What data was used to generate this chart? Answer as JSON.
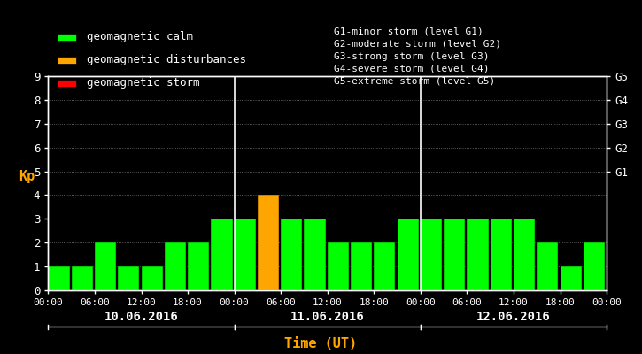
{
  "dates": [
    "10.06.2016",
    "11.06.2016",
    "12.06.2016"
  ],
  "kp_values": [
    1,
    1,
    2,
    1,
    1,
    2,
    2,
    3,
    3,
    4,
    3,
    3,
    2,
    2,
    2,
    3,
    3,
    3,
    3,
    3,
    3,
    2,
    1,
    2
  ],
  "bar_colors": [
    "#00ff00",
    "#00ff00",
    "#00ff00",
    "#00ff00",
    "#00ff00",
    "#00ff00",
    "#00ff00",
    "#00ff00",
    "#00ff00",
    "#ffa500",
    "#00ff00",
    "#00ff00",
    "#00ff00",
    "#00ff00",
    "#00ff00",
    "#00ff00",
    "#00ff00",
    "#00ff00",
    "#00ff00",
    "#00ff00",
    "#00ff00",
    "#00ff00",
    "#00ff00",
    "#00ff00"
  ],
  "bg_color": "#000000",
  "plot_bg": "#000000",
  "bar_edge_color": "#000000",
  "left_ylabel": "Kp",
  "xlabel": "Time (UT)",
  "right_labels": [
    "G5",
    "G4",
    "G3",
    "G2",
    "G1"
  ],
  "right_yticks": [
    9,
    8,
    7,
    6,
    5
  ],
  "legend_items": [
    {
      "label": "geomagnetic calm",
      "color": "#00ff00"
    },
    {
      "label": "geomagnetic disturbances",
      "color": "#ffa500"
    },
    {
      "label": "geomagnetic storm",
      "color": "#ff0000"
    }
  ],
  "right_text": [
    "G1-minor storm (level G1)",
    "G2-moderate storm (level G2)",
    "G3-strong storm (level G3)",
    "G4-severe storm (level G4)",
    "G5-extreme storm (level G5)"
  ],
  "spine_color": "#ffffff",
  "text_color": "#ffffff",
  "orange_color": "#ffa500",
  "ylim_max": 9,
  "bar_width": 0.92,
  "n_per_day": 8,
  "xtick_labels": [
    "00:00",
    "06:00",
    "12:00",
    "18:00",
    "00:00",
    "06:00",
    "12:00",
    "18:00",
    "00:00",
    "06:00",
    "12:00",
    "18:00",
    "00:00"
  ]
}
